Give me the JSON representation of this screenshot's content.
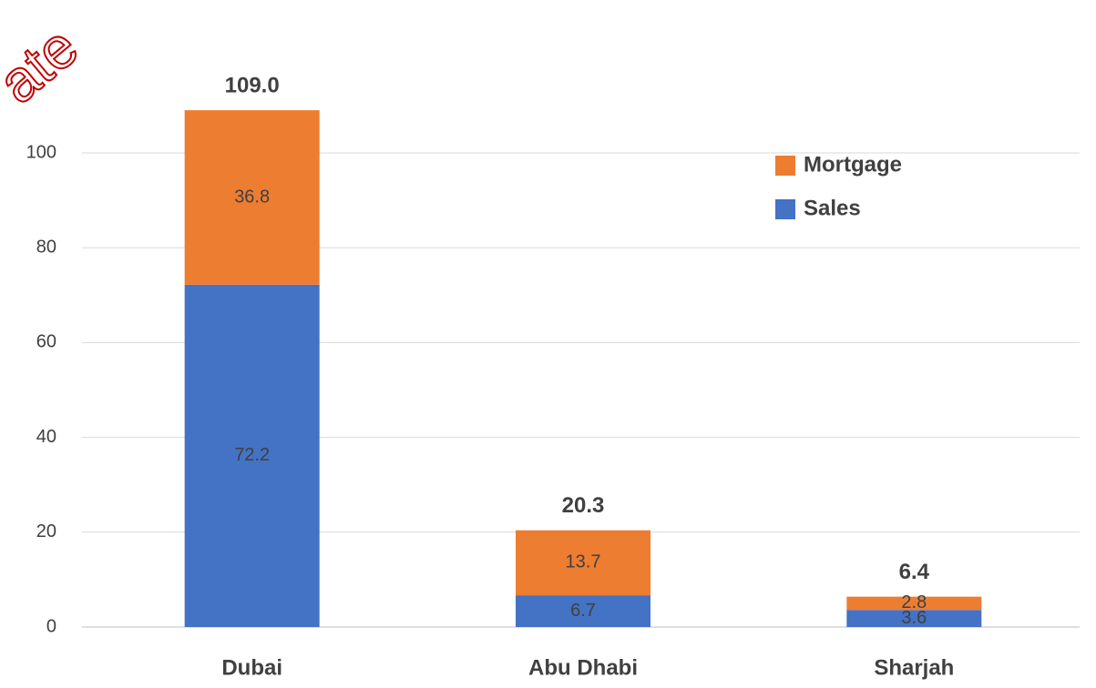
{
  "chart_data": {
    "type": "stacked_bar",
    "watermark": "ate",
    "categories": [
      "Dubai",
      "Abu Dhabi",
      "Sharjah"
    ],
    "series": [
      {
        "name": "Sales",
        "color": "#4472c4",
        "values": [
          72.2,
          6.7,
          3.6
        ]
      },
      {
        "name": "Mortgage",
        "color": "#ed7d31",
        "values": [
          36.8,
          13.7,
          2.8
        ]
      }
    ],
    "total_labels": [
      "109.0",
      "20.3",
      "6.4"
    ],
    "ylim": [
      0,
      120
    ],
    "yticks": [
      0,
      20,
      40,
      60,
      80,
      100
    ],
    "grid": true,
    "legend": "upper right"
  }
}
